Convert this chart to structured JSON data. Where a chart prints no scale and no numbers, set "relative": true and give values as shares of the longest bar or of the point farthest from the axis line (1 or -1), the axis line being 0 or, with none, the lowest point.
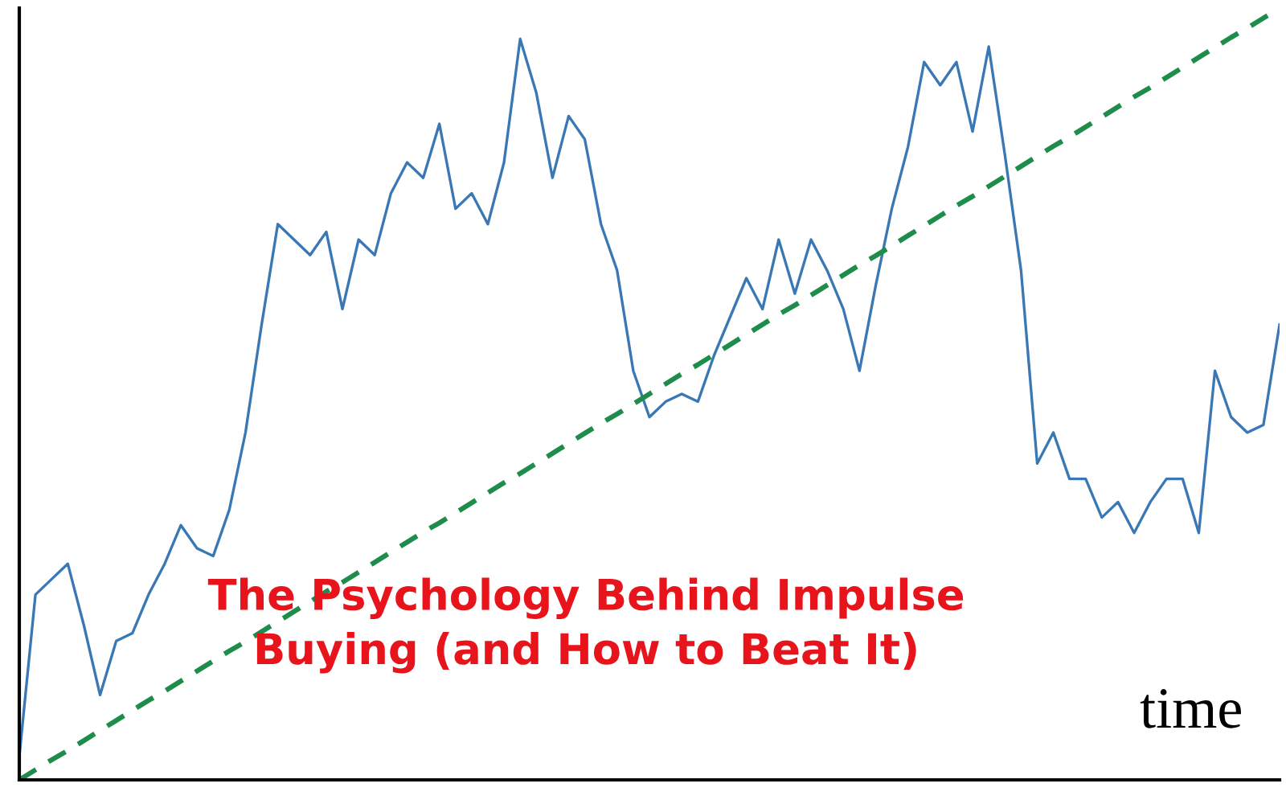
{
  "chart_data": {
    "type": "line",
    "relative": true,
    "title": "The Psychology Behind Impulse Buying (and How to Beat It)",
    "xlabel": "time",
    "categories": [
      null,
      null,
      null,
      null,
      null,
      null,
      null,
      null,
      null,
      null,
      null,
      null,
      null,
      null,
      null,
      null,
      null,
      null,
      null,
      null,
      null,
      null,
      null,
      null,
      null,
      null,
      null,
      null,
      null,
      null,
      null,
      null,
      null,
      null,
      null,
      null,
      null,
      null,
      null,
      null,
      null,
      null,
      null,
      null,
      null,
      null,
      null,
      null,
      null,
      null,
      null,
      null,
      null,
      null,
      null,
      null,
      null,
      null,
      null,
      null,
      null,
      null,
      null,
      null,
      null,
      null,
      null,
      null,
      null,
      null,
      null,
      null,
      null,
      null,
      null,
      null,
      null,
      null,
      null
    ],
    "series": [
      {
        "color": "#3a78b5",
        "values": [
          0.03,
          0.24,
          0.26,
          0.28,
          0.2,
          0.11,
          0.18,
          0.19,
          0.24,
          0.28,
          0.33,
          0.3,
          0.29,
          0.35,
          0.45,
          0.59,
          0.72,
          0.7,
          0.68,
          0.71,
          0.61,
          0.7,
          0.68,
          0.76,
          0.8,
          0.78,
          0.85,
          0.74,
          0.76,
          0.72,
          0.8,
          0.96,
          0.89,
          0.78,
          0.86,
          0.83,
          0.72,
          0.66,
          0.53,
          0.47,
          0.49,
          0.5,
          0.49,
          0.55,
          0.6,
          0.65,
          0.61,
          0.7,
          0.63,
          0.7,
          0.66,
          0.61,
          0.53,
          0.64,
          0.74,
          0.82,
          0.93,
          0.9,
          0.93,
          0.84,
          0.95,
          0.81,
          0.66,
          0.41,
          0.45,
          0.39,
          0.39,
          0.34,
          0.36,
          0.32,
          0.36,
          0.39,
          0.39,
          0.32,
          0.53,
          0.47,
          0.45,
          0.46,
          0.59
        ]
      },
      {
        "color": "#1e8c4a",
        "line_style": "dashed",
        "values": [
          0,
          0.013,
          0.026,
          0.038,
          0.051,
          0.064,
          0.077,
          0.09,
          0.103,
          0.115,
          0.128,
          0.141,
          0.154,
          0.167,
          0.179,
          0.192,
          0.205,
          0.218,
          0.231,
          0.244,
          0.256,
          0.269,
          0.282,
          0.295,
          0.308,
          0.321,
          0.333,
          0.346,
          0.359,
          0.372,
          0.385,
          0.397,
          0.41,
          0.423,
          0.436,
          0.449,
          0.462,
          0.474,
          0.487,
          0.5,
          0.513,
          0.526,
          0.538,
          0.551,
          0.564,
          0.577,
          0.59,
          0.603,
          0.615,
          0.628,
          0.641,
          0.654,
          0.667,
          0.679,
          0.692,
          0.705,
          0.718,
          0.731,
          0.744,
          0.756,
          0.769,
          0.782,
          0.795,
          0.808,
          0.821,
          0.833,
          0.846,
          0.859,
          0.872,
          0.885,
          0.897,
          0.91,
          0.923,
          0.936,
          0.949,
          0.962,
          0.974,
          0.987,
          1
        ]
      }
    ],
    "grid": false,
    "legend": false
  }
}
